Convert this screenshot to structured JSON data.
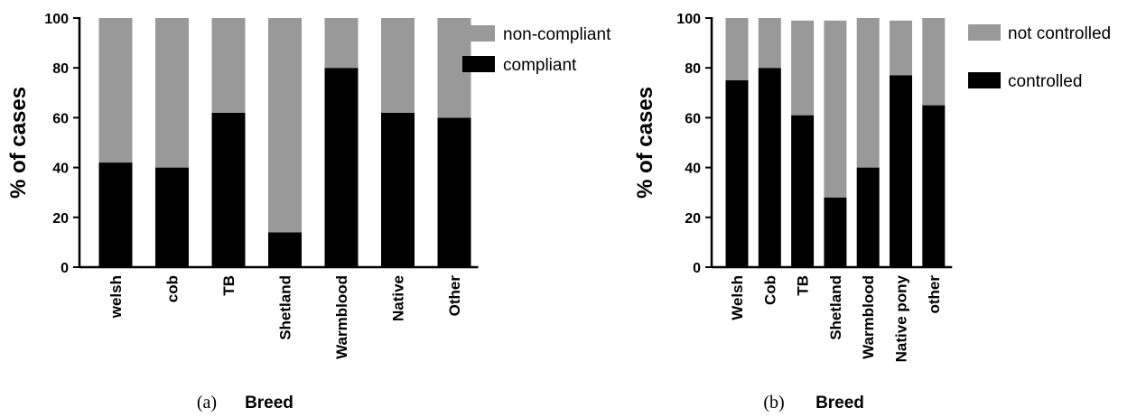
{
  "chart_data": [
    {
      "type": "bar",
      "stacked": true,
      "panel_label": "(a)",
      "xlabel": "Breed",
      "ylabel": "% of cases",
      "ylim": [
        0,
        100
      ],
      "yticks": [
        0,
        20,
        40,
        60,
        80,
        100
      ],
      "categories": [
        "welsh",
        "cob",
        "TB",
        "Shetland",
        "Warmblood",
        "Native",
        "Other"
      ],
      "series": [
        {
          "name": "compliant",
          "color": "#000000",
          "values": [
            42,
            40,
            62,
            14,
            80,
            62,
            60
          ]
        },
        {
          "name": "non-compliant",
          "color": "#999999",
          "values": [
            58,
            60,
            38,
            86,
            20,
            38,
            40
          ]
        }
      ],
      "legend_order": [
        "non-compliant",
        "compliant"
      ],
      "legend": "right",
      "grid": false
    },
    {
      "type": "bar",
      "stacked": true,
      "panel_label": "(b)",
      "xlabel": "Breed",
      "ylabel": "% of cases",
      "ylim": [
        0,
        100
      ],
      "yticks": [
        0,
        20,
        40,
        60,
        80,
        100
      ],
      "categories": [
        "Welsh",
        "Cob",
        "TB",
        "Shetland",
        "Warmblood",
        "Native pony",
        "other"
      ],
      "series": [
        {
          "name": "controlled",
          "color": "#000000",
          "values": [
            75,
            80,
            61,
            28,
            40,
            77,
            65
          ]
        },
        {
          "name": "not controlled",
          "color": "#999999",
          "values": [
            25,
            20,
            38,
            71,
            60,
            22,
            35
          ]
        }
      ],
      "legend_order": [
        "not controlled",
        "controlled"
      ],
      "legend": "right",
      "grid": false
    }
  ]
}
